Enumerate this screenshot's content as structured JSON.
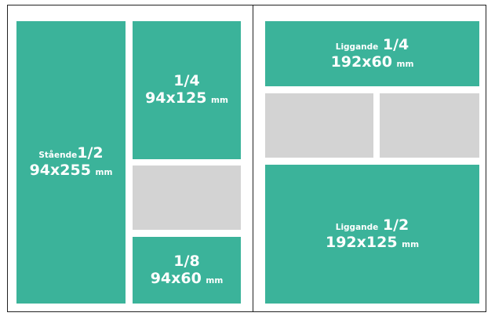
{
  "ads": [
    {
      "name": "Stående",
      "fraction": "1/2",
      "size": "94x255",
      "unit": "mm"
    },
    {
      "fraction": "1/4",
      "size": "94x125",
      "unit": "mm"
    },
    {
      "fraction": "1/8",
      "size": "94x60",
      "unit": "mm"
    },
    {
      "name": "Liggande",
      "fraction": "1/4",
      "size": "192x60",
      "unit": "mm"
    },
    {
      "name": "Liggande",
      "fraction": "1/2",
      "size": "192x125",
      "unit": "mm"
    }
  ]
}
